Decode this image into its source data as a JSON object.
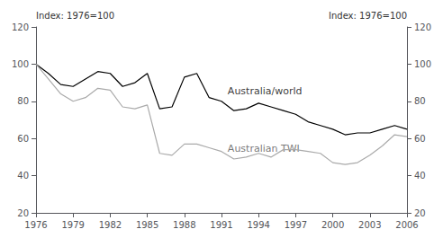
{
  "chart_data": {
    "type": "line",
    "ylabel": "Index: 1976=100",
    "y2label": "Index: 1976=100",
    "x": [
      1976,
      1977,
      1978,
      1979,
      1980,
      1981,
      1982,
      1983,
      1984,
      1985,
      1986,
      1987,
      1988,
      1989,
      1990,
      1991,
      1992,
      1993,
      1994,
      1995,
      1996,
      1997,
      1998,
      1999,
      2000,
      2001,
      2002,
      2003,
      2004,
      2005,
      2006
    ],
    "series": [
      {
        "color": "#000000",
        "values": [
          100,
          95,
          89,
          88,
          92,
          96,
          95,
          88,
          90,
          95,
          76,
          77,
          93,
          95,
          82,
          80,
          75,
          76,
          79,
          77,
          75,
          73,
          69,
          67,
          65,
          62,
          63,
          63,
          65,
          67,
          65
        ]
      },
      {
        "color": "#aaaaaa",
        "values": [
          100,
          92,
          84,
          80,
          82,
          87,
          86,
          77,
          76,
          78,
          52,
          51,
          57,
          57,
          55,
          53,
          49,
          50,
          52,
          50,
          54,
          54,
          53,
          52,
          47,
          46,
          47,
          51,
          56,
          62,
          61
        ]
      }
    ],
    "annotations": [
      {
        "text": "Australia/world",
        "x": 1991.5,
        "y": 82,
        "color": "#000000"
      },
      {
        "text": "Australian TWI",
        "x": 1991.5,
        "y": 51,
        "color": "#555555"
      }
    ],
    "xlim": [
      1976,
      2006
    ],
    "xticks": [
      1976,
      1979,
      1982,
      1985,
      1988,
      1991,
      1994,
      1997,
      2000,
      2003,
      2006
    ],
    "ylim": [
      20,
      120
    ],
    "yticks": [
      20,
      40,
      60,
      80,
      100,
      120
    ],
    "y2lim": [
      20,
      120
    ],
    "y2ticks": [
      20,
      40,
      60,
      80,
      100,
      120
    ],
    "grid": false
  }
}
